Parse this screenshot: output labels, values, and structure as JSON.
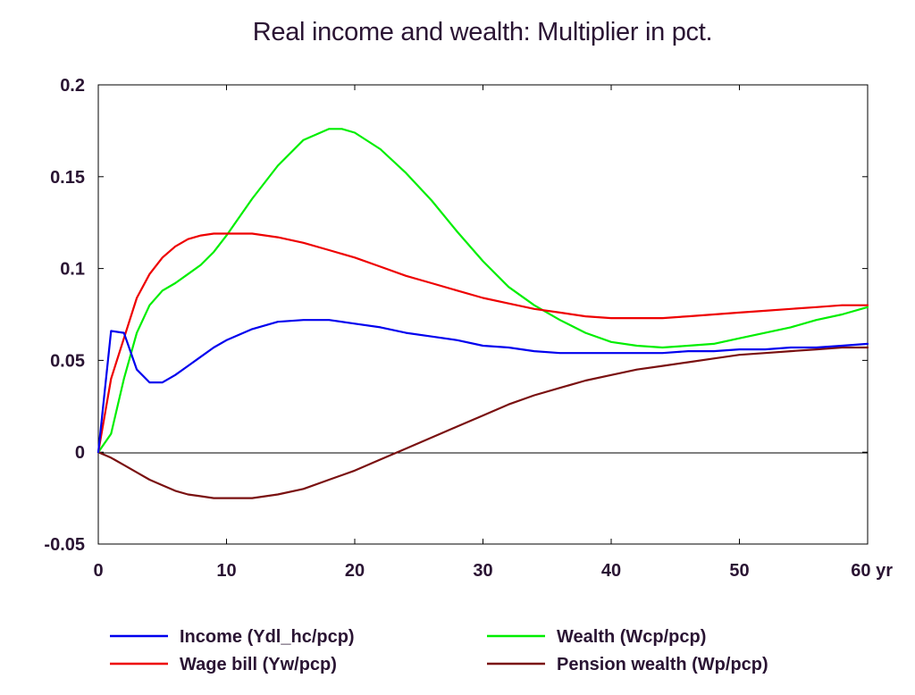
{
  "chart_data": {
    "type": "line",
    "title": "Real income and wealth: Multiplier in pct.",
    "xlabel": "",
    "ylabel": "",
    "x_unit_label": "yr",
    "xlim": [
      0,
      60
    ],
    "ylim": [
      -0.05,
      0.2
    ],
    "x_ticks": [
      0,
      10,
      20,
      30,
      40,
      50,
      60
    ],
    "x_tick_labels": [
      "0",
      "10",
      "20",
      "30",
      "40",
      "50",
      "60 yr"
    ],
    "y_ticks": [
      -0.05,
      0,
      0.05,
      0.1,
      0.15,
      0.2
    ],
    "y_tick_labels": [
      "-0.05",
      "0",
      "0.05",
      "0.1",
      "0.15",
      "0.2"
    ],
    "grid": false,
    "zero_line": true,
    "legend_position": "bottom",
    "series": [
      {
        "name": "Income (Ydl_hc/pcp)",
        "color": "#0000ee",
        "x": [
          0,
          1,
          2,
          3,
          4,
          5,
          6,
          7,
          8,
          9,
          10,
          12,
          14,
          16,
          18,
          20,
          22,
          24,
          26,
          28,
          30,
          32,
          34,
          36,
          38,
          40,
          42,
          44,
          46,
          48,
          50,
          52,
          54,
          56,
          58,
          60
        ],
        "y": [
          0,
          0.066,
          0.065,
          0.045,
          0.038,
          0.038,
          0.042,
          0.047,
          0.052,
          0.057,
          0.061,
          0.067,
          0.071,
          0.072,
          0.072,
          0.07,
          0.068,
          0.065,
          0.063,
          0.061,
          0.058,
          0.057,
          0.055,
          0.054,
          0.054,
          0.054,
          0.054,
          0.054,
          0.055,
          0.055,
          0.056,
          0.056,
          0.057,
          0.057,
          0.058,
          0.059
        ]
      },
      {
        "name": "Wealth (Wcp/pcp)",
        "color": "#00ee00",
        "x": [
          0,
          1,
          2,
          3,
          4,
          5,
          6,
          7,
          8,
          9,
          10,
          12,
          14,
          16,
          18,
          19,
          20,
          22,
          24,
          26,
          28,
          30,
          32,
          34,
          36,
          38,
          40,
          42,
          44,
          46,
          48,
          50,
          52,
          54,
          56,
          58,
          60
        ],
        "y": [
          0,
          0.01,
          0.04,
          0.065,
          0.08,
          0.088,
          0.092,
          0.097,
          0.102,
          0.109,
          0.118,
          0.138,
          0.156,
          0.17,
          0.176,
          0.176,
          0.174,
          0.165,
          0.152,
          0.137,
          0.12,
          0.104,
          0.09,
          0.08,
          0.072,
          0.065,
          0.06,
          0.058,
          0.057,
          0.058,
          0.059,
          0.062,
          0.065,
          0.068,
          0.072,
          0.075,
          0.079
        ]
      },
      {
        "name": "Wage bill (Yw/pcp)",
        "color": "#ee0000",
        "x": [
          0,
          1,
          2,
          3,
          4,
          5,
          6,
          7,
          8,
          9,
          10,
          12,
          14,
          16,
          18,
          20,
          22,
          24,
          26,
          28,
          30,
          32,
          34,
          36,
          38,
          40,
          42,
          44,
          46,
          48,
          50,
          52,
          54,
          56,
          58,
          60
        ],
        "y": [
          0,
          0.04,
          0.062,
          0.084,
          0.097,
          0.106,
          0.112,
          0.116,
          0.118,
          0.119,
          0.119,
          0.119,
          0.117,
          0.114,
          0.11,
          0.106,
          0.101,
          0.096,
          0.092,
          0.088,
          0.084,
          0.081,
          0.078,
          0.076,
          0.074,
          0.073,
          0.073,
          0.073,
          0.074,
          0.075,
          0.076,
          0.077,
          0.078,
          0.079,
          0.08,
          0.08
        ]
      },
      {
        "name": "Pension wealth (Wp/pcp)",
        "color": "#7a1010",
        "x": [
          0,
          1,
          2,
          3,
          4,
          5,
          6,
          7,
          8,
          9,
          10,
          11,
          12,
          14,
          16,
          18,
          20,
          22,
          24,
          26,
          28,
          30,
          32,
          34,
          36,
          38,
          40,
          42,
          44,
          46,
          48,
          50,
          52,
          54,
          56,
          58,
          60
        ],
        "y": [
          0,
          -0.003,
          -0.007,
          -0.011,
          -0.015,
          -0.018,
          -0.021,
          -0.023,
          -0.024,
          -0.025,
          -0.025,
          -0.025,
          -0.025,
          -0.023,
          -0.02,
          -0.015,
          -0.01,
          -0.004,
          0.002,
          0.008,
          0.014,
          0.02,
          0.026,
          0.031,
          0.035,
          0.039,
          0.042,
          0.045,
          0.047,
          0.049,
          0.051,
          0.053,
          0.054,
          0.055,
          0.056,
          0.057,
          0.057
        ]
      }
    ],
    "legend": [
      {
        "label": "Income (Ydl_hc/pcp)",
        "color": "#0000ee"
      },
      {
        "label": "Wealth (Wcp/pcp)",
        "color": "#00ee00"
      },
      {
        "label": "Wage bill (Yw/pcp)",
        "color": "#ee0000"
      },
      {
        "label": "Pension wealth (Wp/pcp)",
        "color": "#7a1010"
      }
    ]
  }
}
